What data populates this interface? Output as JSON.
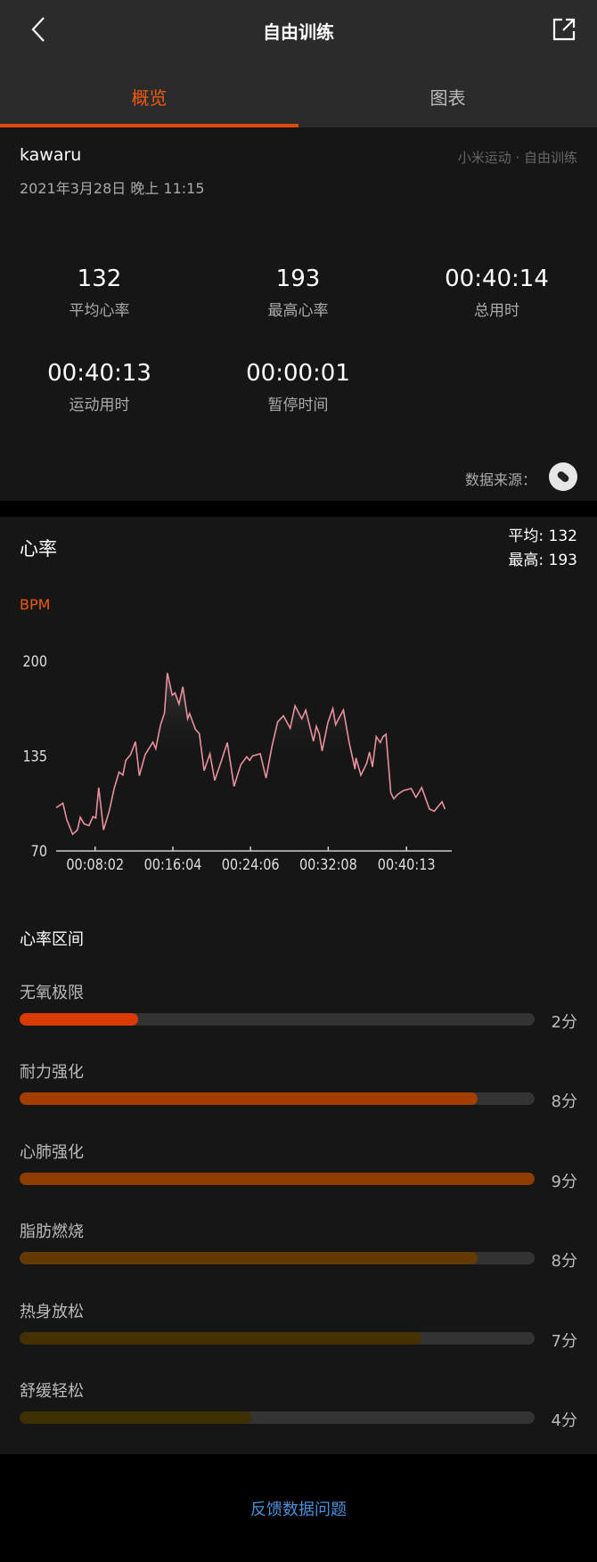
{
  "header": {
    "title": "自由训练",
    "back_icon": "chevron-left-icon",
    "share_icon": "share-icon"
  },
  "tabs": [
    {
      "label": "概览",
      "active": true
    },
    {
      "label": "图表",
      "active": false
    }
  ],
  "colors": {
    "accent": "#f05a0e",
    "line": "#e8909c",
    "link": "#4a8fd8"
  },
  "summary": {
    "user": "kawaru",
    "source": "小米运动 · 自由训练",
    "datetime": "2021年3月28日 晚上 11:15",
    "stats": [
      {
        "value": "132",
        "label": "平均心率"
      },
      {
        "value": "193",
        "label": "最高心率"
      },
      {
        "value": "00:40:14",
        "label": "总用时"
      },
      {
        "value": "00:40:13",
        "label": "运动用时"
      },
      {
        "value": "00:00:01",
        "label": "暂停时间"
      }
    ],
    "data_source_label": "数据来源：",
    "data_source_icon": "band-icon"
  },
  "heart": {
    "title": "心率",
    "avg": "平均: 132",
    "max": "最高: 193",
    "unit": "BPM"
  },
  "chart_data": {
    "type": "area",
    "ylabel": "BPM",
    "yticks": [
      "200",
      "135",
      "70"
    ],
    "ylim": [
      70,
      200
    ],
    "xticks": [
      "00:08:02",
      "00:16:04",
      "00:24:06",
      "00:32:08",
      "00:40:13"
    ],
    "xtick_minutes": [
      8.03,
      16.07,
      24.1,
      32.13,
      40.22
    ],
    "xlim_minutes": [
      4.0,
      44.9
    ],
    "grid": false,
    "series": [
      {
        "x_minutes": [
          4.0,
          4.7,
          5.1,
          5.7,
          6.2,
          6.5,
          6.9,
          7.4,
          7.8,
          8.1,
          8.4,
          8.9,
          9.5,
          10.0,
          10.5,
          10.9,
          11.2,
          11.7,
          12.2,
          12.6,
          13.2,
          14.0,
          14.3,
          14.8,
          15.2,
          15.5,
          16.0,
          16.3,
          16.7,
          17.1,
          17.6,
          17.8,
          18.4,
          18.8,
          19.3,
          19.9,
          20.4,
          21.1,
          21.7,
          22.4,
          22.7,
          23.1,
          23.7,
          24.0,
          24.3,
          25.1,
          25.7,
          26.3,
          26.9,
          27.5,
          28.2,
          28.7,
          29.4,
          29.8,
          30.6,
          30.9,
          31.2,
          31.5,
          32.1,
          32.6,
          32.9,
          33.2,
          33.7,
          34.3,
          34.9,
          35.0,
          35.5,
          36.1,
          36.4,
          36.7,
          37.1,
          37.5,
          37.8,
          38.1,
          38.6,
          38.9,
          39.3,
          39.9,
          40.7,
          41.2,
          41.8,
          42.6,
          43.1,
          43.5,
          43.9,
          44.2
        ],
        "values": [
          99.6,
          102.7,
          91.5,
          81.4,
          84.4,
          93,
          88.5,
          87.4,
          93.5,
          92.5,
          113.4,
          84.4,
          97.6,
          112.8,
          124,
          122,
          132,
          136,
          144.8,
          121.5,
          136,
          144.6,
          140,
          156.4,
          164.5,
          191.9,
          176.7,
          178.3,
          170.6,
          182.4,
          160.5,
          164.1,
          153.4,
          150.3,
          125,
          136.5,
          118.3,
          132,
          144.2,
          114.2,
          120.9,
          129,
          134.5,
          132,
          135.1,
          136.5,
          119.9,
          141.2,
          158.4,
          162.5,
          154,
          169.4,
          160.5,
          166.5,
          145.2,
          155.4,
          150.3,
          138.5,
          158,
          167.6,
          156.4,
          160.5,
          166.5,
          144.2,
          126,
          133.7,
          121.9,
          130,
          137.7,
          127.6,
          148.3,
          144.2,
          148.3,
          149.9,
          109.8,
          105.7,
          108.7,
          111.4,
          112.8,
          106.7,
          113.4,
          98.6,
          97.2,
          100.6,
          103.7,
          98.6
        ]
      }
    ]
  },
  "zones": {
    "title": "心率区间",
    "items": [
      {
        "label": "无氧极限",
        "minutes": "2分",
        "fraction": 0.23,
        "color": "#d93a00"
      },
      {
        "label": "耐力强化",
        "minutes": "8分",
        "fraction": 0.89,
        "color": "#a33d00"
      },
      {
        "label": "心肺强化",
        "minutes": "9分",
        "fraction": 1.0,
        "color": "#8f3c00"
      },
      {
        "label": "脂肪燃烧",
        "minutes": "8分",
        "fraction": 0.89,
        "color": "#643a00"
      },
      {
        "label": "热身放松",
        "minutes": "7分",
        "fraction": 0.78,
        "color": "#443000"
      },
      {
        "label": "舒缓轻松",
        "minutes": "4分",
        "fraction": 0.45,
        "color": "#3e2f00"
      }
    ]
  },
  "footer": {
    "feedback": "反馈数据问题"
  }
}
